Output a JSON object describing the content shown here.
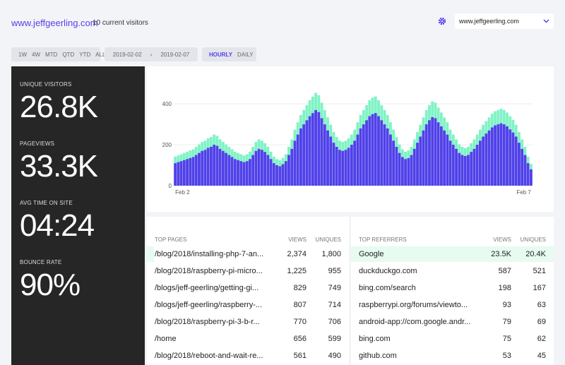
{
  "header": {
    "site": "www.jeffgeerling.com",
    "current_visitors": "10 current visitors",
    "site_select": "www.jeffgeerling.com"
  },
  "filters": {
    "periods": [
      "1W",
      "4W",
      "MTD",
      "QTD",
      "YTD",
      "ALL"
    ],
    "date_from": "2019-02-02",
    "date_separator": "›",
    "date_to": "2019-02-07",
    "granularity": [
      "HOURLY",
      "DAILY"
    ]
  },
  "stats": [
    {
      "label": "UNIQUE VISITORS",
      "value": "26.8K"
    },
    {
      "label": "PAGEVIEWS",
      "value": "33.3K"
    },
    {
      "label": "AVG TIME ON SITE",
      "value": "04:24"
    },
    {
      "label": "BOUNCE RATE",
      "value": "90%"
    }
  ],
  "chart_data": {
    "type": "bar",
    "ylim": [
      0,
      480
    ],
    "yticks": [
      0,
      200,
      400
    ],
    "grid": true,
    "categories": [
      "Feb 2",
      null,
      null,
      null,
      null,
      null,
      null,
      null,
      null,
      null,
      null,
      null,
      null,
      null,
      null,
      null,
      null,
      null,
      null,
      null,
      null,
      null,
      null,
      null,
      null,
      null,
      null,
      null,
      null,
      null,
      null,
      null,
      null,
      null,
      null,
      null,
      null,
      null,
      null,
      null,
      null,
      null,
      null,
      null,
      null,
      null,
      null,
      null,
      null,
      null,
      null,
      null,
      null,
      null,
      null,
      null,
      null,
      null,
      null,
      null,
      null,
      null,
      null,
      null,
      null,
      null,
      null,
      null,
      null,
      null,
      null,
      null,
      null,
      null,
      null,
      null,
      null,
      null,
      null,
      null,
      null,
      null,
      null,
      null,
      null,
      null,
      null,
      null,
      null,
      null,
      null,
      null,
      null,
      null,
      null,
      null,
      null,
      null,
      null,
      null,
      null,
      null,
      null,
      null,
      null,
      null,
      null,
      null,
      null,
      null,
      null,
      null,
      null,
      null,
      null,
      null,
      null,
      null,
      null,
      "Feb 7"
    ],
    "series": [
      {
        "color": "#7ff3c4",
        "values": [
          142,
          148,
          154,
          160,
          166,
          172,
          178,
          190,
          202,
          214,
          220,
          232,
          238,
          250,
          244,
          226,
          214,
          202,
          190,
          178,
          166,
          160,
          154,
          148,
          154,
          166,
          190,
          214,
          226,
          220,
          208,
          190,
          166,
          142,
          130,
          124,
          136,
          154,
          190,
          226,
          274,
          310,
          346,
          370,
          394,
          418,
          436,
          454,
          442,
          406,
          370,
          334,
          298,
          262,
          238,
          220,
          214,
          220,
          232,
          250,
          274,
          310,
          346,
          370,
          394,
          418,
          430,
          436,
          418,
          394,
          370,
          346,
          310,
          274,
          238,
          202,
          178,
          166,
          172,
          190,
          226,
          262,
          298,
          334,
          370,
          394,
          412,
          406,
          382,
          358,
          334,
          310,
          274,
          250,
          226,
          202,
          190,
          184,
          190,
          208,
          226,
          250,
          274,
          298,
          316,
          334,
          352,
          364,
          370,
          376,
          370,
          358,
          340,
          322,
          298,
          262,
          226,
          190,
          142,
          106
        ]
      },
      {
        "color": "#533feb",
        "values": [
          110,
          115,
          120,
          125,
          130,
          135,
          140,
          150,
          160,
          170,
          175,
          185,
          190,
          200,
          195,
          180,
          170,
          160,
          150,
          140,
          130,
          125,
          120,
          115,
          120,
          130,
          150,
          170,
          180,
          175,
          165,
          150,
          130,
          110,
          100,
          95,
          105,
          120,
          150,
          180,
          220,
          250,
          280,
          300,
          320,
          340,
          355,
          370,
          360,
          330,
          300,
          270,
          240,
          210,
          190,
          175,
          170,
          175,
          185,
          200,
          220,
          250,
          280,
          300,
          320,
          340,
          350,
          355,
          340,
          320,
          300,
          280,
          250,
          220,
          190,
          160,
          140,
          130,
          135,
          150,
          180,
          210,
          240,
          270,
          300,
          320,
          335,
          330,
          310,
          290,
          270,
          250,
          220,
          200,
          180,
          160,
          150,
          145,
          150,
          165,
          180,
          200,
          220,
          240,
          255,
          270,
          285,
          295,
          300,
          305,
          300,
          290,
          275,
          260,
          240,
          210,
          180,
          150,
          110,
          80
        ]
      }
    ]
  },
  "top_pages": {
    "headers": [
      "TOP PAGES",
      "VIEWS",
      "UNIQUES"
    ],
    "rows": [
      [
        "/blog/2018/installing-php-7-an...",
        "2,374",
        "1,800"
      ],
      [
        "/blog/2018/raspberry-pi-micro...",
        "1,225",
        "955"
      ],
      [
        "/blogs/jeff-geerling/getting-gi...",
        "829",
        "749"
      ],
      [
        "/blogs/jeff-geerling/raspberry-...",
        "807",
        "714"
      ],
      [
        "/blog/2018/raspberry-pi-3-b-r...",
        "770",
        "706"
      ],
      [
        "/home",
        "656",
        "599"
      ],
      [
        "/blog/2018/reboot-and-wait-re...",
        "561",
        "490"
      ]
    ]
  },
  "top_referrers": {
    "headers": [
      "TOP REFERRERS",
      "VIEWS",
      "UNIQUES"
    ],
    "rows": [
      [
        "Google",
        "23.5K",
        "20.4K"
      ],
      [
        "duckduckgo.com",
        "587",
        "521"
      ],
      [
        "bing.com/search",
        "198",
        "167"
      ],
      [
        "raspberrypi.org/forums/viewto...",
        "93",
        "63"
      ],
      [
        "android-app://com.google.andr...",
        "79",
        "69"
      ],
      [
        "bing.com",
        "75",
        "62"
      ],
      [
        "github.com",
        "53",
        "45"
      ]
    ]
  }
}
